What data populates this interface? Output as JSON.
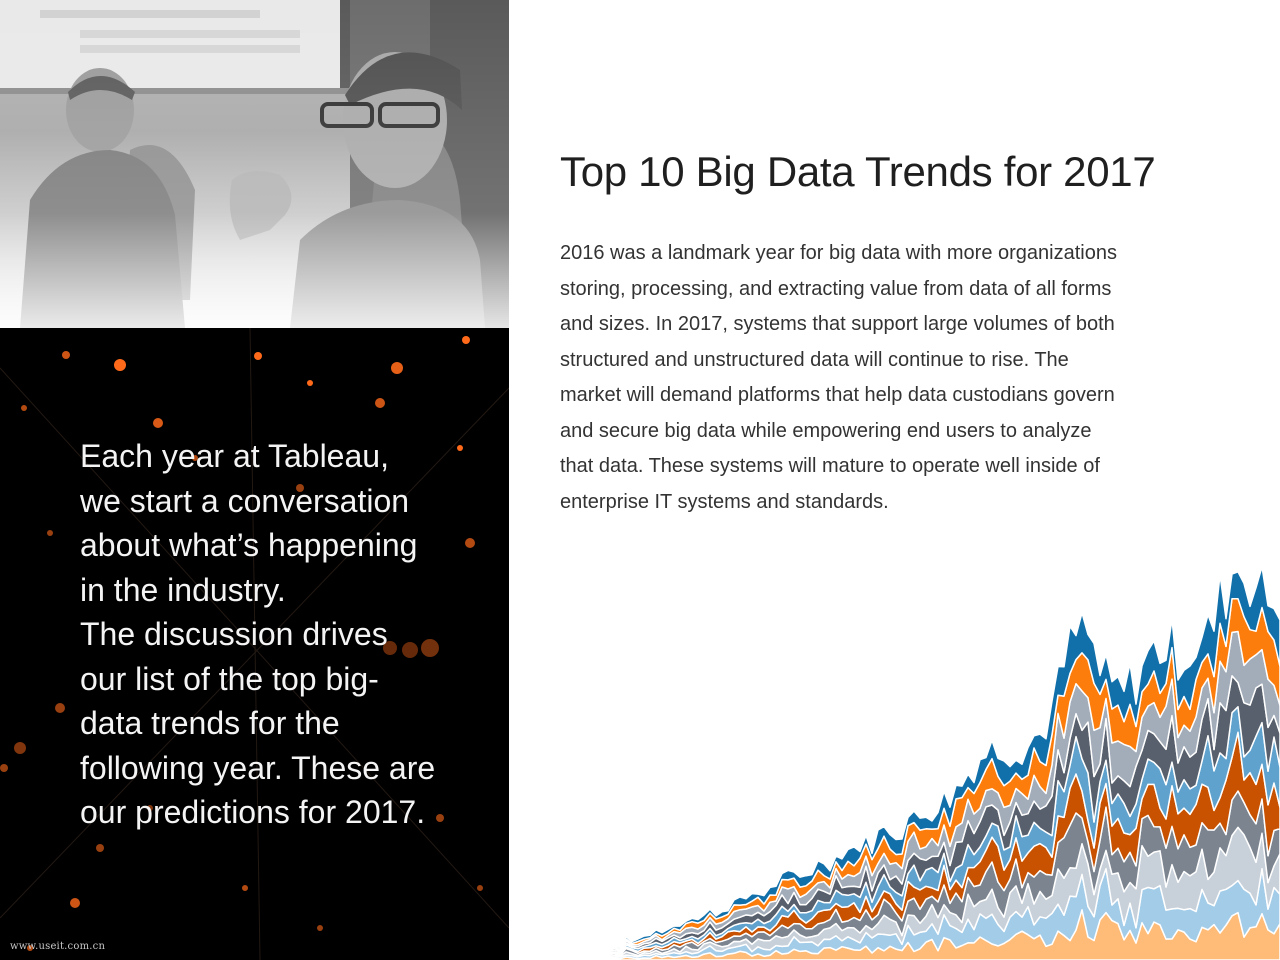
{
  "page": {
    "title": "Top 10 Big Data Trends for 2017",
    "body_lines": [
      "2016 was a landmark year for big data with more organizations",
      "storing, processing, and extracting value from data of all forms",
      "and sizes. In 2017, systems that support large volumes of both",
      "structured and unstructured data will continue to rise. The",
      "market will demand platforms that help data custodians govern",
      "and secure big data while empowering end users to analyze",
      "that data. These systems will mature to operate well inside of",
      "enterprise IT systems and standards."
    ],
    "intro_lines": [
      "Each year at Tableau,",
      "we start a conversation",
      "about what’s happening",
      "in the industry.",
      "The discussion drives",
      "our list of the top big-",
      "data trends for the",
      "following year. These are",
      "our predictions for 2017."
    ],
    "watermark": "www.useit.com.cn"
  },
  "colors": {
    "dark_blue": "#1170aa",
    "orange": "#fc7d0b",
    "light_gray": "#a3acb9",
    "slate": "#57606c",
    "mid_blue": "#5fa2ce",
    "rust": "#c85200",
    "gray": "#7b848f",
    "pale_blue": "#a3cce9",
    "light_orange": "#ffbc79",
    "silver": "#c8d0d9",
    "bokeh": "#ff6a1a"
  }
}
